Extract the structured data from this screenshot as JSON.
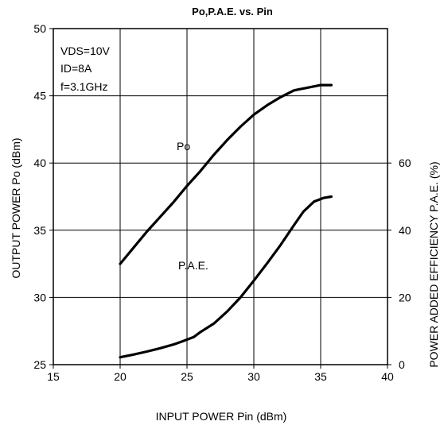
{
  "chart_data": {
    "type": "line",
    "title": "Po,P.A.E. vs. Pin",
    "xlabel": "INPUT POWER Pin (dBm)",
    "ylabel_left": "OUTPUT POWER Po (dBm)",
    "ylabel_right": "POWER ADDED EFFICIENCY P.A.E. (%)",
    "xlim": [
      15,
      40
    ],
    "ylim_left": [
      25,
      50
    ],
    "ylim_right": [
      0,
      100
    ],
    "x_ticks": [
      "15",
      "20",
      "25",
      "30",
      "35",
      "40"
    ],
    "y_left_ticks": [
      "25",
      "30",
      "35",
      "40",
      "45",
      "50"
    ],
    "y_right_ticks": [
      "0",
      "20",
      "40",
      "60"
    ],
    "grid": true,
    "conditions": [
      "VDS=10V",
      "ID=8A",
      "f=3.1GHz"
    ],
    "series": [
      {
        "name": "Po",
        "axis": "left",
        "x": [
          20,
          21,
          22,
          23,
          24,
          25,
          26,
          27,
          28,
          29,
          30,
          31,
          32,
          33,
          33.5,
          34,
          35,
          35.8
        ],
        "y": [
          32.5,
          33.7,
          34.9,
          36.0,
          37.1,
          38.3,
          39.4,
          40.6,
          41.7,
          42.7,
          43.6,
          44.3,
          44.9,
          45.4,
          45.5,
          45.6,
          45.8,
          45.8
        ]
      },
      {
        "name": "P.A.E.",
        "axis": "right",
        "x": [
          20,
          21,
          22,
          23,
          24,
          24.7,
          25.5,
          26,
          27,
          28,
          29,
          30,
          31,
          32,
          33,
          33.7,
          34.5,
          35.2,
          35.8
        ],
        "y": [
          2.2,
          3.0,
          3.9,
          4.9,
          6.0,
          7.0,
          8.2,
          9.7,
          12.2,
          15.8,
          20.0,
          25.0,
          30.2,
          35.6,
          41.5,
          45.5,
          48.5,
          49.6,
          50.0
        ]
      }
    ]
  }
}
